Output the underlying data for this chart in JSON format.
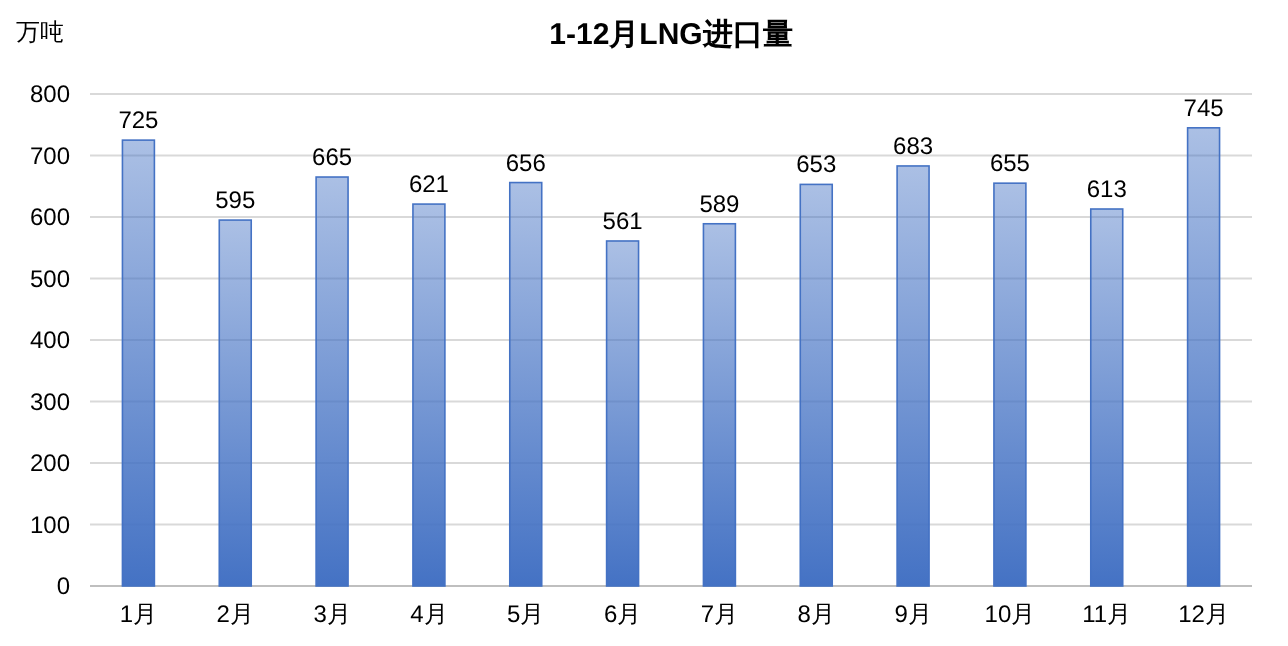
{
  "chart_data": {
    "type": "bar",
    "title": "1-12月LNG进口量",
    "ylabel": "万吨",
    "categories": [
      "1月",
      "2月",
      "3月",
      "4月",
      "5月",
      "6月",
      "7月",
      "8月",
      "9月",
      "10月",
      "11月",
      "12月"
    ],
    "values": [
      725,
      595,
      665,
      621,
      656,
      561,
      589,
      653,
      683,
      655,
      613,
      745
    ],
    "color": "#4472c4",
    "ylim": [
      0,
      800
    ],
    "yticks": [
      0,
      100,
      200,
      300,
      400,
      500,
      600,
      700,
      800
    ],
    "grid": "y",
    "data_labels": true
  }
}
